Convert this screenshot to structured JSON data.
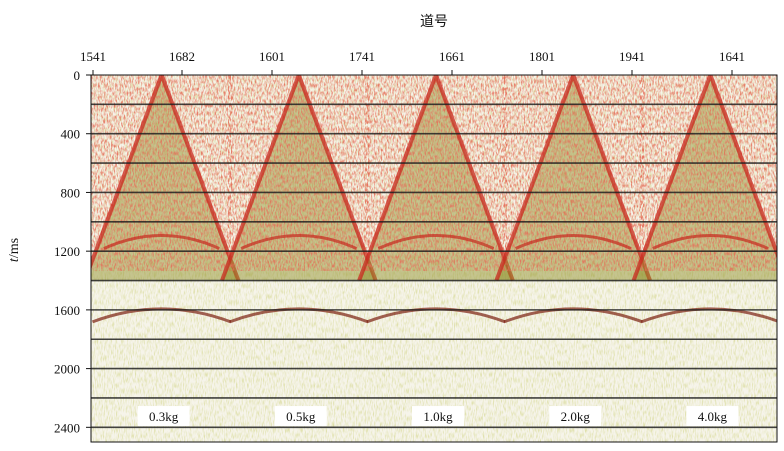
{
  "chart_data": {
    "type": "heatmap",
    "title": "",
    "xlabel": "道号",
    "ylabel_italic": "t",
    "ylabel_unit": "/ms",
    "x_tick_labels": [
      "1541",
      "1682",
      "1601",
      "1741",
      "1661",
      "1801",
      "1941",
      "1641"
    ],
    "y_ticks": [
      0,
      400,
      800,
      1200,
      1600,
      2000,
      2400
    ],
    "ylim": [
      0,
      2500
    ],
    "y_reversed": true,
    "horizontal_lines_ms": [
      200,
      400,
      600,
      800,
      1000,
      1200,
      1400,
      1600,
      1800,
      2000,
      2200,
      2400
    ],
    "panels": [
      {
        "name": "0.3kg",
        "apex_ms": 0
      },
      {
        "name": "0.5kg",
        "apex_ms": 0
      },
      {
        "name": "1.0kg",
        "apex_ms": 0
      },
      {
        "name": "2.0kg",
        "apex_ms": 0
      },
      {
        "name": "4.0kg",
        "apex_ms": 0
      }
    ],
    "colors": {
      "background": "#f6f4ea",
      "strong_amplitude": "#c8281e",
      "medium_amplitude": "#8a8a1e",
      "weak_amplitude": "#d8d870",
      "grid_line": "#222222"
    },
    "grid": false
  }
}
